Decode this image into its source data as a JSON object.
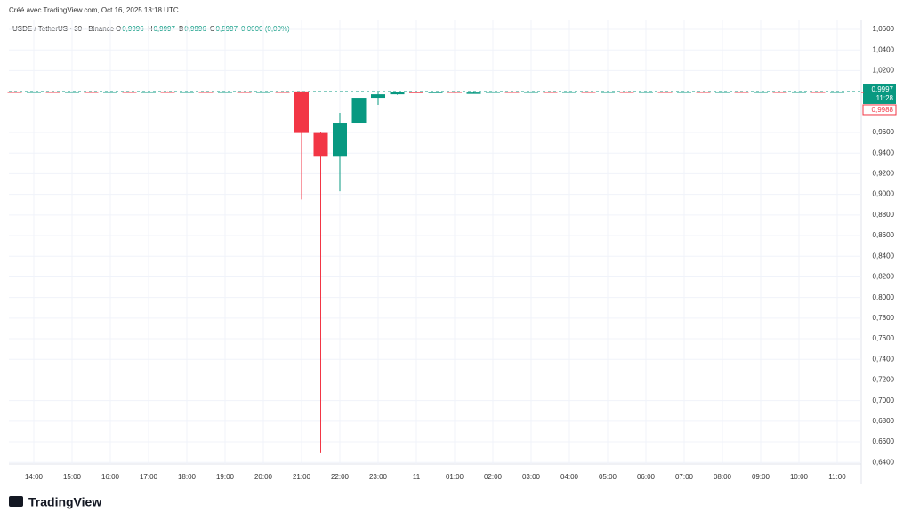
{
  "header": {
    "credit": "Créé avec TradingView.com, Oct 16, 2025 13:18 UTC",
    "symbol": "USDE / TetherUS · 30 · Binance",
    "ohlc": [
      {
        "key": "O",
        "value": "0,9996"
      },
      {
        "key": "H",
        "value": "0,9997"
      },
      {
        "key": "B",
        "value": "0,9996"
      },
      {
        "key": "C",
        "value": "0,9997"
      }
    ],
    "change": "0,0000 (0,00%)"
  },
  "chart_data": {
    "type": "candlestick",
    "up_color": "#089981",
    "down_color": "#f23645",
    "grid": true,
    "categories": [
      null,
      "14:00",
      null,
      "15:00",
      null,
      "16:00",
      null,
      "17:00",
      null,
      "18:00",
      null,
      "19:00",
      null,
      "20:00",
      null,
      "21:00",
      null,
      "22:00",
      null,
      "23:00",
      null,
      "11",
      null,
      "01:00",
      null,
      "02:00",
      null,
      "03:00",
      null,
      "04:00",
      null,
      "05:00",
      null,
      "06:00",
      null,
      "07:00",
      null,
      "08:00",
      null,
      "09:00",
      null,
      "10:00",
      null,
      "11:00"
    ],
    "open": [
      0.9997,
      0.9996,
      0.9997,
      0.9996,
      0.9997,
      0.9996,
      0.9997,
      0.9996,
      0.9997,
      0.9996,
      0.9997,
      0.9996,
      0.9997,
      0.9996,
      0.9997,
      0.9998,
      0.9595,
      0.9365,
      0.9695,
      0.9936,
      0.997,
      0.9995,
      0.999,
      0.9997,
      0.9982,
      0.9987,
      0.9997,
      0.9996,
      0.9997,
      0.9996,
      0.9997,
      0.9996,
      0.9997,
      0.9996,
      0.9997,
      0.9996,
      0.9997,
      0.9996,
      0.9997,
      0.9996,
      0.9997,
      0.9996,
      0.9997,
      0.9996
    ],
    "high": [
      0.9998,
      0.9998,
      0.9998,
      0.9998,
      0.9998,
      0.9998,
      0.9998,
      0.9998,
      0.9998,
      0.9998,
      0.9998,
      0.9998,
      0.9998,
      0.9998,
      0.9998,
      0.9999,
      0.96,
      0.979,
      0.998,
      0.9997,
      0.9996,
      0.9998,
      0.9997,
      0.9998,
      0.999,
      0.9998,
      0.9998,
      0.9998,
      0.9998,
      0.9998,
      0.9998,
      0.9998,
      0.9998,
      0.9998,
      0.9998,
      0.9998,
      0.9998,
      0.9998,
      0.9998,
      0.9998,
      0.9998,
      0.9998,
      0.9998,
      0.9997
    ],
    "low": [
      0.9995,
      0.9995,
      0.9995,
      0.9995,
      0.9995,
      0.9995,
      0.9995,
      0.9995,
      0.9995,
      0.9995,
      0.9995,
      0.9995,
      0.9995,
      0.9995,
      0.9995,
      0.895,
      0.649,
      0.903,
      0.969,
      0.9867,
      0.9965,
      0.9988,
      0.9988,
      0.9983,
      0.998,
      0.9985,
      0.9995,
      0.9995,
      0.9995,
      0.9995,
      0.9995,
      0.9995,
      0.9995,
      0.9995,
      0.9995,
      0.9995,
      0.9995,
      0.9995,
      0.9995,
      0.9995,
      0.9995,
      0.9995,
      0.9995,
      0.9996
    ],
    "close": [
      0.9996,
      0.9997,
      0.9996,
      0.9997,
      0.9996,
      0.9997,
      0.9996,
      0.9997,
      0.9996,
      0.9997,
      0.9996,
      0.9997,
      0.9996,
      0.9997,
      0.9996,
      0.9595,
      0.9365,
      0.9695,
      0.9936,
      0.997,
      0.999,
      0.999,
      0.9995,
      0.9985,
      0.9987,
      0.9997,
      0.9996,
      0.9997,
      0.9996,
      0.9997,
      0.9996,
      0.9997,
      0.9996,
      0.9997,
      0.9996,
      0.9997,
      0.9996,
      0.9997,
      0.9996,
      0.9997,
      0.9996,
      0.9997,
      0.9996,
      0.9997
    ],
    "ylim": [
      0.6385,
      1.0695
    ],
    "yticks": [
      {
        "value": 1.06,
        "label": "1,0600"
      },
      {
        "value": 1.04,
        "label": "1,0400"
      },
      {
        "value": 1.02,
        "label": "1,0200"
      },
      {
        "value": 0.96,
        "label": "0,9600"
      },
      {
        "value": 0.94,
        "label": "0,9400"
      },
      {
        "value": 0.92,
        "label": "0,9200"
      },
      {
        "value": 0.9,
        "label": "0,9000"
      },
      {
        "value": 0.88,
        "label": "0,8800"
      },
      {
        "value": 0.86,
        "label": "0,8600"
      },
      {
        "value": 0.84,
        "label": "0,8400"
      },
      {
        "value": 0.82,
        "label": "0,8200"
      },
      {
        "value": 0.8,
        "label": "0,8000"
      },
      {
        "value": 0.78,
        "label": "0,7800"
      },
      {
        "value": 0.76,
        "label": "0,7600"
      },
      {
        "value": 0.74,
        "label": "0,7400"
      },
      {
        "value": 0.72,
        "label": "0,7200"
      },
      {
        "value": 0.7,
        "label": "0,7000"
      },
      {
        "value": 0.68,
        "label": "0,6800"
      },
      {
        "value": 0.66,
        "label": "0,6600"
      },
      {
        "value": 0.64,
        "label": "0,6400"
      }
    ],
    "last_price": {
      "value": 0.9997,
      "label": "0,9997"
    },
    "countdown": "11:28",
    "marker": {
      "value": 0.9988,
      "label": "0,9988"
    }
  },
  "footer": {
    "logo": "TradingView"
  }
}
